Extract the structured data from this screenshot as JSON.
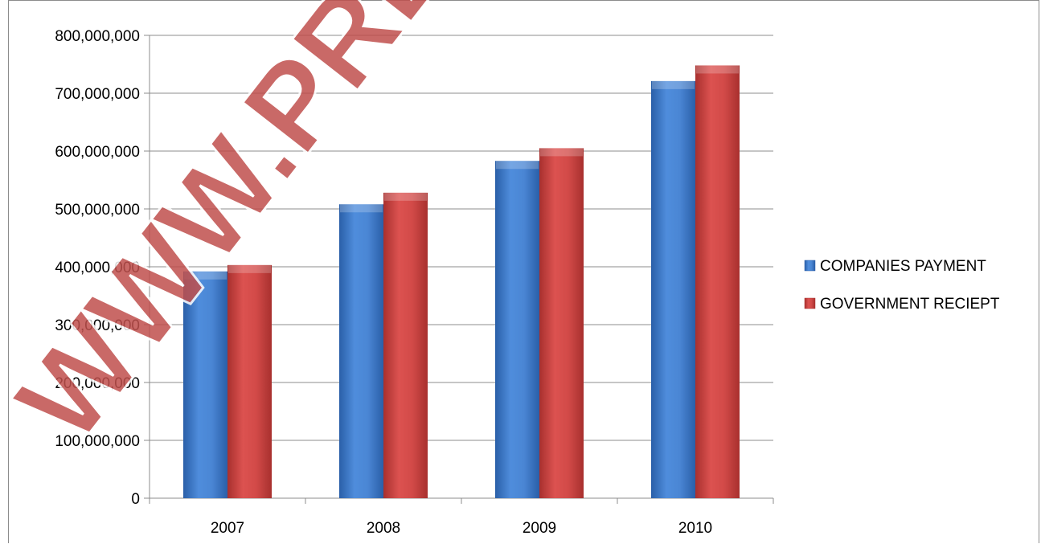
{
  "chart_data": {
    "type": "bar",
    "categories": [
      "2007",
      "2008",
      "2009",
      "2010"
    ],
    "series": [
      {
        "name": "COMPANIES PAYMENT",
        "values": [
          392000000,
          508000000,
          583000000,
          721000000
        ]
      },
      {
        "name": "GOVERNMENT RECIEPT",
        "values": [
          403000000,
          528000000,
          605000000,
          748000000
        ]
      }
    ],
    "ylim": [
      0,
      800000000
    ],
    "yticks": [
      "0",
      "100,000,000",
      "200,000,000",
      "300,000,000",
      "400,000,000",
      "500,000,000",
      "600,000,000",
      "700,000,000",
      "800,000,000"
    ],
    "title": "",
    "xlabel": "",
    "ylabel": "",
    "grid": true,
    "legend_position": "right",
    "colors": {
      "series": [
        "#4a86d4",
        "#d24a48"
      ],
      "series_dark": [
        "#2a5fa8",
        "#a8302e"
      ],
      "grid": "#8c8c8c"
    }
  },
  "watermark": {
    "text": "WWW.PREMI"
  }
}
